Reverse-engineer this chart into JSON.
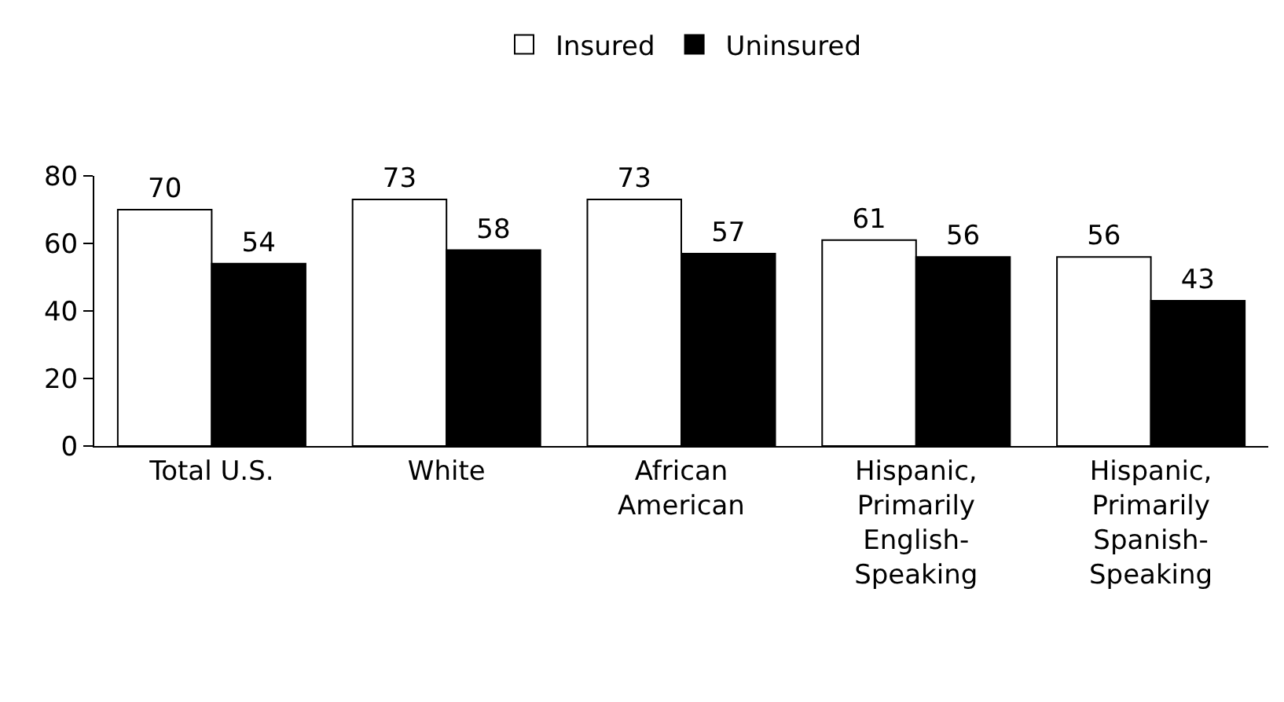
{
  "chart_data": {
    "type": "bar",
    "categories": [
      "Total U.S.",
      "White",
      "African\nAmerican",
      "Hispanic,\nPrimarily\nEnglish-\nSpeaking",
      "Hispanic,\nPrimarily\nSpanish-\nSpeaking"
    ],
    "series": [
      {
        "name": "Insured",
        "color": "#ffffff",
        "values": [
          70,
          73,
          73,
          61,
          56
        ]
      },
      {
        "name": "Uninsured",
        "color": "#000000",
        "values": [
          54,
          58,
          57,
          56,
          43
        ]
      }
    ],
    "ylim": [
      0,
      80
    ],
    "yticks": [
      0,
      20,
      40,
      60,
      80
    ],
    "grid": false,
    "legend": "top",
    "data_labels": true
  }
}
